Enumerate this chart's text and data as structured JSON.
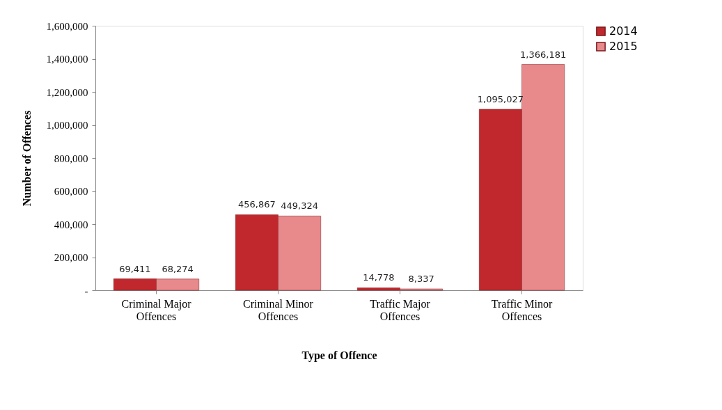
{
  "chart_data": {
    "type": "bar",
    "xlabel": "Type of Offence",
    "ylabel": "Number of Offences",
    "categories": [
      "Criminal Major Offences",
      "Criminal Minor Offences",
      "Traffic Major Offences",
      "Traffic Minor Offences"
    ],
    "series": [
      {
        "name": "2014",
        "color": "#c0282d",
        "values": [
          69411,
          456867,
          14778,
          1095027
        ],
        "value_labels": [
          "69,411",
          "456,867",
          "14,778",
          "1,095,027"
        ]
      },
      {
        "name": "2015",
        "color": "#e8898c",
        "values": [
          68274,
          449324,
          8337,
          1366181
        ],
        "value_labels": [
          "68,274",
          "449,324",
          "8,337",
          "1,366,181"
        ]
      }
    ],
    "ylim": [
      0,
      1600000
    ],
    "yticks": [
      {
        "value": 0,
        "label": "-"
      },
      {
        "value": 200000,
        "label": "200,000"
      },
      {
        "value": 400000,
        "label": "400,000"
      },
      {
        "value": 600000,
        "label": "600,000"
      },
      {
        "value": 800000,
        "label": "800,000"
      },
      {
        "value": 1000000,
        "label": "1,000,000"
      },
      {
        "value": 1200000,
        "label": "1,200,000"
      },
      {
        "value": 1400000,
        "label": "1,400,000"
      },
      {
        "value": 1600000,
        "label": "1,600,000"
      }
    ],
    "legend": "right",
    "grid": false
  }
}
